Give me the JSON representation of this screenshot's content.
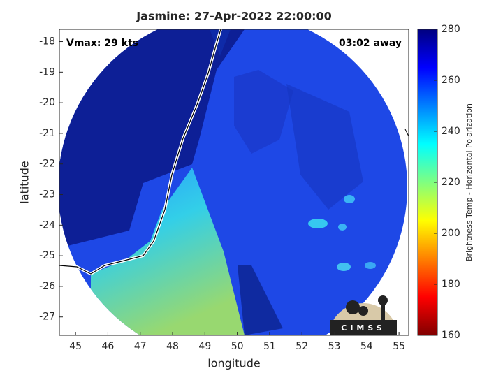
{
  "chart_data": {
    "type": "map",
    "title": "Jasmine: 27-Apr-2022 22:00:00",
    "annotations": [
      "Vmax: 29 kts",
      "03:02 away"
    ],
    "xlabel": "longitude",
    "ylabel": "latitude",
    "xlim": [
      44.5,
      55.3
    ],
    "ylim": [
      -27.6,
      -17.6
    ],
    "xticks": [
      45,
      46,
      47,
      48,
      49,
      50,
      51,
      52,
      53,
      54,
      55
    ],
    "yticks": [
      -18,
      -19,
      -20,
      -21,
      -22,
      -23,
      -24,
      -25,
      -26,
      -27
    ],
    "colorbar": {
      "label": "Brightness Temp - Horizontal Polarization",
      "lim": [
        160,
        280
      ],
      "ticks": [
        160,
        180,
        200,
        220,
        240,
        260,
        280
      ],
      "colormap": "jet"
    },
    "logo": "CIMSS"
  }
}
